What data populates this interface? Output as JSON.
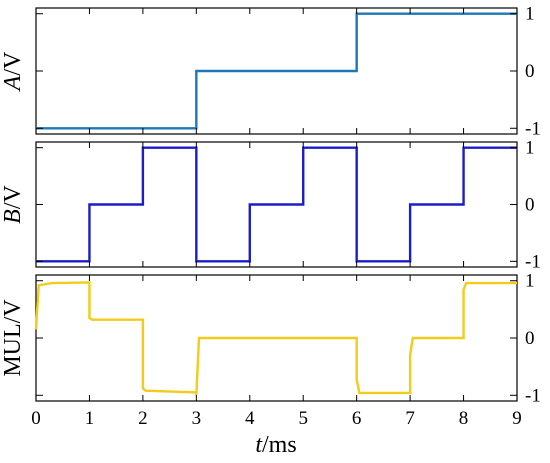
{
  "chart_data": {
    "type": "line",
    "x_axis": {
      "label_italic": "t",
      "label_rest": "/ms",
      "range": [
        0,
        9
      ],
      "ticks": [
        0,
        1,
        2,
        3,
        4,
        5,
        6,
        7,
        8,
        9
      ],
      "tick_labels": [
        "0",
        "1",
        "2",
        "3",
        "4",
        "5",
        "6",
        "7",
        "8",
        "9"
      ]
    },
    "panels": [
      {
        "id": "A",
        "ylabel_italic": "A",
        "ylabel_rest": "/V",
        "ylim": [
          -1.1,
          1.1
        ],
        "yticks": [
          -1,
          0,
          1
        ],
        "ytick_labels": [
          "-1",
          "0",
          "1"
        ],
        "color": "#1f77b4",
        "x": [
          0,
          3,
          3,
          6,
          6,
          9
        ],
        "y": [
          -1,
          -1,
          0,
          0,
          1,
          1
        ]
      },
      {
        "id": "B",
        "ylabel_italic": "B",
        "ylabel_rest": "/V",
        "ylim": [
          -1.1,
          1.1
        ],
        "yticks": [
          -1,
          0,
          1
        ],
        "ytick_labels": [
          "-1",
          "0",
          "1"
        ],
        "color": "#1c1cc8",
        "x": [
          0,
          1,
          1,
          2,
          2,
          3,
          3,
          4,
          4,
          5,
          5,
          6,
          6,
          7,
          7,
          8,
          8,
          9
        ],
        "y": [
          -1,
          -1,
          0,
          0,
          1,
          1,
          -1,
          -1,
          0,
          0,
          1,
          1,
          -1,
          -1,
          0,
          0,
          1,
          1
        ]
      },
      {
        "id": "MUL",
        "ylabel_italic": "",
        "ylabel_rest": "MUL/V",
        "ylim": [
          -1.1,
          1.1
        ],
        "yticks": [
          -1,
          0,
          1
        ],
        "ytick_labels": [
          "-1",
          "0",
          "1"
        ],
        "color": "#f2cc1a",
        "x": [
          0,
          0.05,
          0.3,
          1,
          1,
          1.05,
          2,
          2,
          2.05,
          3,
          3,
          3.05,
          6,
          6,
          6.05,
          7,
          7,
          7.05,
          8,
          8,
          8.05,
          9
        ],
        "y": [
          0.15,
          0.92,
          0.96,
          0.97,
          0.35,
          0.32,
          0.32,
          -0.88,
          -0.92,
          -0.95,
          -1.0,
          0.0,
          0.0,
          -0.72,
          -0.96,
          -0.96,
          -0.3,
          0.0,
          0.0,
          0.85,
          0.96,
          0.96
        ]
      }
    ]
  }
}
